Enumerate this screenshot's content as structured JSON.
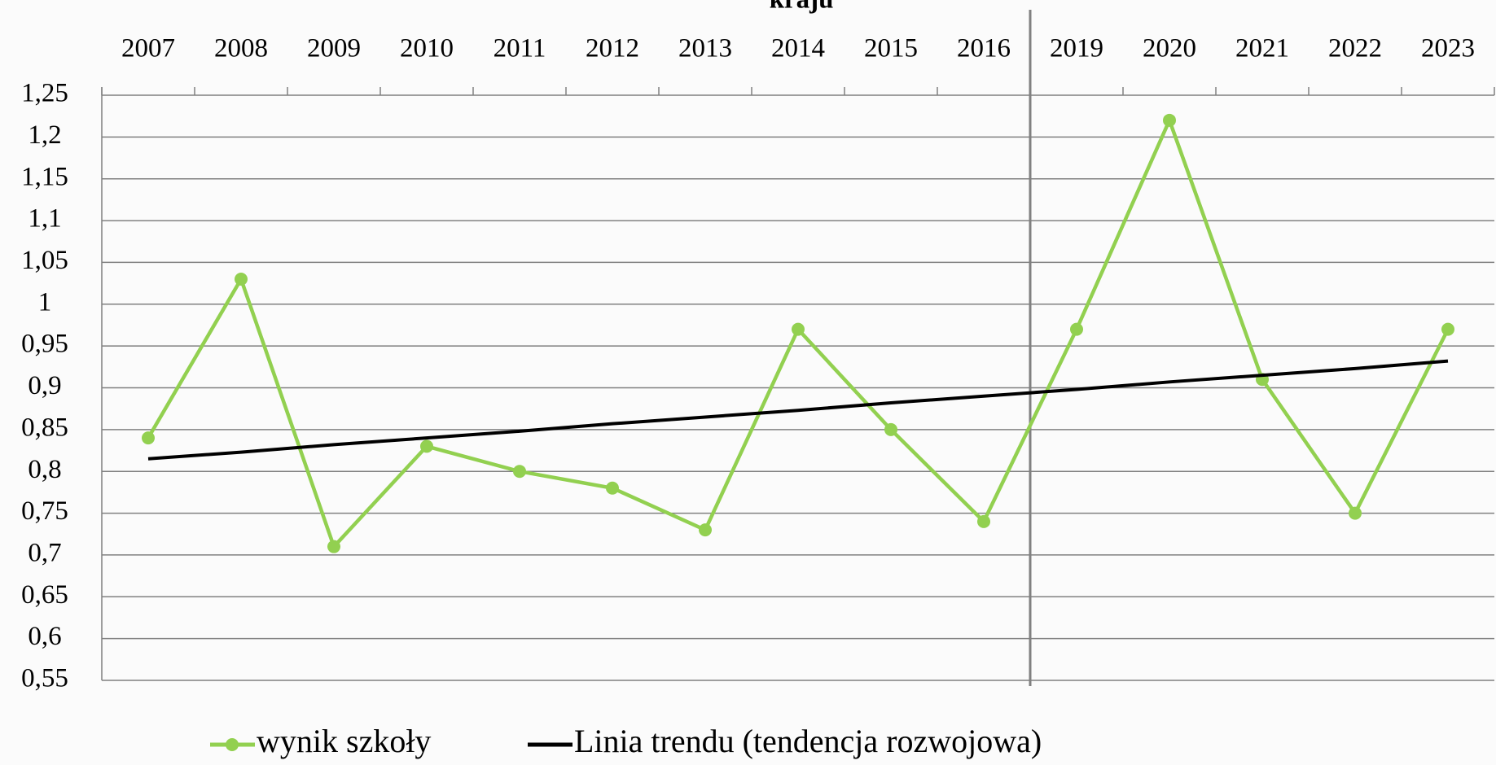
{
  "chart_data": {
    "type": "line",
    "title": "kraju",
    "categories": [
      "2007",
      "2008",
      "2009",
      "2010",
      "2011",
      "2012",
      "2013",
      "2014",
      "2015",
      "2016",
      "2019",
      "2020",
      "2021",
      "2022",
      "2023"
    ],
    "series": [
      {
        "name": "wynik szkoły",
        "color": "#92d050",
        "values": [
          0.84,
          1.03,
          0.71,
          0.83,
          0.8,
          0.78,
          0.73,
          0.97,
          0.85,
          0.74,
          0.97,
          1.22,
          0.91,
          0.75,
          0.97
        ]
      },
      {
        "name": "Linia trendu (tendencja rozwojowa)",
        "color": "#000000",
        "values": [
          0.815,
          0.823,
          0.832,
          0.84,
          0.848,
          0.857,
          0.865,
          0.873,
          0.882,
          0.89,
          0.898,
          0.907,
          0.915,
          0.923,
          0.932
        ]
      }
    ],
    "ylim": [
      0.55,
      1.25
    ],
    "yticks": [
      {
        "value": 0.55,
        "label": "0,55"
      },
      {
        "value": 0.6,
        "label": "0,6"
      },
      {
        "value": 0.65,
        "label": "0,65"
      },
      {
        "value": 0.7,
        "label": "0,7"
      },
      {
        "value": 0.75,
        "label": "0,75"
      },
      {
        "value": 0.8,
        "label": "0,8"
      },
      {
        "value": 0.85,
        "label": "0,85"
      },
      {
        "value": 0.9,
        "label": "0,9"
      },
      {
        "value": 0.95,
        "label": "0,95"
      },
      1,
      {
        "value": 1.05,
        "label": "1,05"
      },
      {
        "value": 1.1,
        "label": "1,1"
      },
      {
        "value": 1.15,
        "label": "1,15"
      },
      {
        "value": 1.2,
        "label": "1,2"
      },
      {
        "value": 1.25,
        "label": "1,25"
      }
    ],
    "grid": true,
    "legend": "bottom"
  }
}
